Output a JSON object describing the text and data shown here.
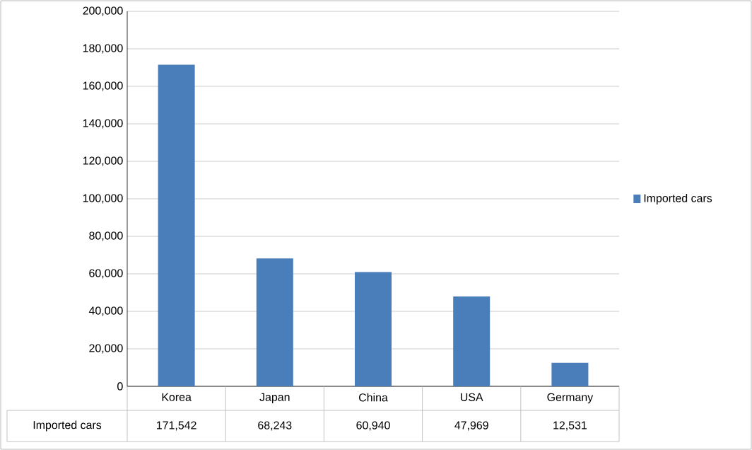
{
  "chart_data": {
    "type": "bar",
    "categories": [
      "Korea",
      "Japan",
      "China",
      "USA",
      "Germany"
    ],
    "series": [
      {
        "name": "Imported cars",
        "color": "#4a7ebb",
        "values": [
          171542,
          68243,
          60940,
          47969,
          12531
        ],
        "value_labels": [
          "171,542",
          "68,243",
          "60,940",
          "47,969",
          "12,531"
        ]
      }
    ],
    "ylim": [
      0,
      200000
    ],
    "yticks": [
      {
        "value": 0,
        "label": "0"
      },
      {
        "value": 20000,
        "label": "20,000"
      },
      {
        "value": 40000,
        "label": "40,000"
      },
      {
        "value": 60000,
        "label": "60,000"
      },
      {
        "value": 80000,
        "label": "80,000"
      },
      {
        "value": 100000,
        "label": "100,000"
      },
      {
        "value": 120000,
        "label": "120,000"
      },
      {
        "value": 140000,
        "label": "140,000"
      },
      {
        "value": 160000,
        "label": "160,000"
      },
      {
        "value": 180000,
        "label": "180,000"
      },
      {
        "value": 200000,
        "label": "200,000"
      }
    ],
    "grid": "y",
    "legend": "right"
  }
}
